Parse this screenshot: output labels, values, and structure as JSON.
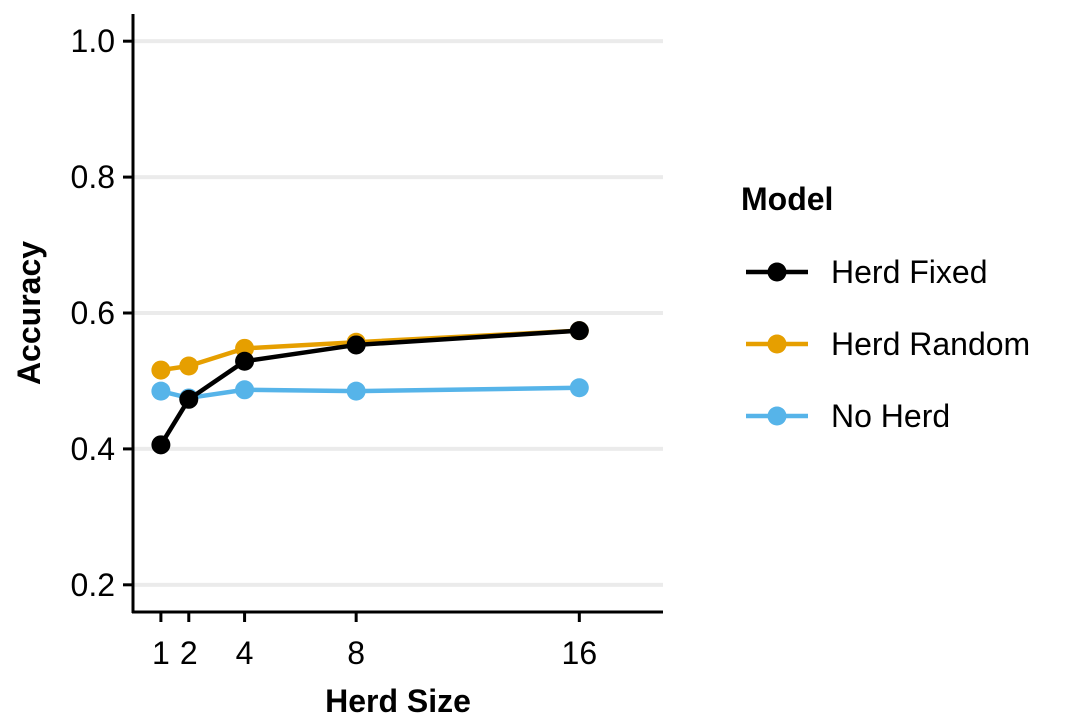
{
  "chart_data": {
    "type": "line",
    "title": "",
    "xlabel": "Herd Size",
    "ylabel": "Accuracy",
    "x": [
      1,
      2,
      4,
      8,
      16
    ],
    "x_ticks": [
      "1",
      "2",
      "4",
      "8",
      "16"
    ],
    "y_ticks": [
      "0.2",
      "0.4",
      "0.6",
      "0.8",
      "1.0"
    ],
    "xlim": [
      0,
      19
    ],
    "ylim": [
      0.16,
      1.04
    ],
    "grid": "horizontal major gridlines",
    "legend": {
      "title": "Model",
      "placement": "right"
    },
    "series": [
      {
        "name": "Herd Fixed",
        "color": "#000000",
        "values": [
          0.406,
          0.473,
          0.529,
          0.553,
          0.574
        ]
      },
      {
        "name": "Herd Random",
        "color": "#E69F00",
        "values": [
          0.516,
          0.522,
          0.548,
          0.557,
          0.574
        ]
      },
      {
        "name": "No Herd",
        "color": "#56B4E9",
        "values": [
          0.485,
          0.475,
          0.487,
          0.485,
          0.49
        ]
      }
    ]
  }
}
